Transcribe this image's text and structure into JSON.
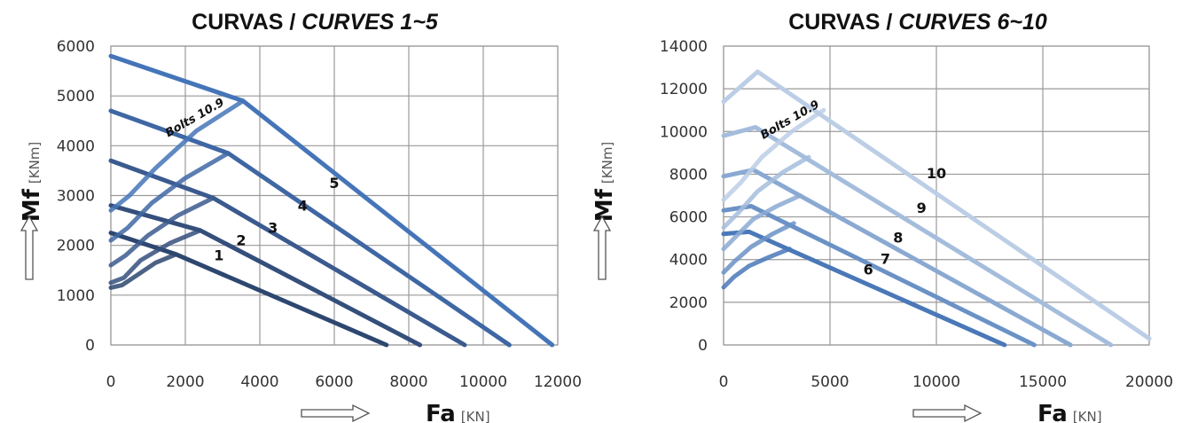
{
  "chart_data": [
    {
      "type": "line",
      "title_part1": "CURVAS / ",
      "title_part2": "CURVES 1~5",
      "xlabel": "Fa",
      "xunit": "[KN]",
      "ylabel": "Mf",
      "yunit": "[KNm]",
      "xlim": [
        0,
        12000
      ],
      "ylim": [
        0,
        6000
      ],
      "xticks": [
        "0",
        "2000",
        "4000",
        "6000",
        "8000",
        "10000",
        "12000"
      ],
      "yticks": [
        "0",
        "1000",
        "2000",
        "3000",
        "4000",
        "5000",
        "6000"
      ],
      "annotation": "Bolts 10.9",
      "series": [
        {
          "name": "1",
          "color": "#2d4770",
          "points": [
            [
              0,
              2250
            ],
            [
              1750,
              1820
            ],
            [
              7400,
              0
            ]
          ]
        },
        {
          "name": "2",
          "color": "#354f7c",
          "points": [
            [
              0,
              2800
            ],
            [
              2400,
              2300
            ],
            [
              8300,
              0
            ]
          ]
        },
        {
          "name": "3",
          "color": "#3b5a8e",
          "points": [
            [
              0,
              3700
            ],
            [
              2750,
              2950
            ],
            [
              9500,
              0
            ]
          ]
        },
        {
          "name": "4",
          "color": "#3f67a4",
          "points": [
            [
              0,
              4700
            ],
            [
              3150,
              3850
            ],
            [
              10700,
              0
            ]
          ]
        },
        {
          "name": "5",
          "color": "#4575b8",
          "points": [
            [
              0,
              5800
            ],
            [
              3550,
              4900
            ],
            [
              11850,
              0
            ]
          ]
        }
      ],
      "bolt_curves": [
        {
          "series": "1",
          "points": [
            [
              0,
              1150
            ],
            [
              300,
              1200
            ],
            [
              700,
              1400
            ],
            [
              1200,
              1650
            ],
            [
              1750,
              1820
            ]
          ]
        },
        {
          "series": "2",
          "points": [
            [
              0,
              1250
            ],
            [
              350,
              1350
            ],
            [
              800,
              1700
            ],
            [
              1600,
              2050
            ],
            [
              2400,
              2300
            ]
          ]
        },
        {
          "series": "3",
          "points": [
            [
              0,
              1600
            ],
            [
              400,
              1800
            ],
            [
              1000,
              2200
            ],
            [
              1800,
              2600
            ],
            [
              2750,
              2950
            ]
          ]
        },
        {
          "series": "4",
          "points": [
            [
              0,
              2100
            ],
            [
              450,
              2350
            ],
            [
              1100,
              2850
            ],
            [
              2000,
              3350
            ],
            [
              3150,
              3850
            ]
          ]
        },
        {
          "series": "5",
          "points": [
            [
              0,
              2700
            ],
            [
              500,
              3000
            ],
            [
              1200,
              3550
            ],
            [
              2300,
              4300
            ],
            [
              3550,
              4900
            ]
          ]
        }
      ],
      "curve_labels": [
        {
          "text": "1",
          "x": 2900,
          "y": 1700
        },
        {
          "text": "2",
          "x": 3500,
          "y": 2000
        },
        {
          "text": "3",
          "x": 4350,
          "y": 2250
        },
        {
          "text": "4",
          "x": 5150,
          "y": 2700
        },
        {
          "text": "5",
          "x": 6000,
          "y": 3150
        }
      ],
      "annotation_pos": {
        "x": 2300,
        "y": 4500
      }
    },
    {
      "type": "line",
      "title_part1": "CURVAS / ",
      "title_part2": "CURVES 6~10",
      "xlabel": "Fa",
      "xunit": "[KN]",
      "ylabel": "Mf",
      "yunit": "[KNm]",
      "xlim": [
        0,
        20000
      ],
      "ylim": [
        0,
        14000
      ],
      "xticks": [
        "0",
        "5000",
        "10000",
        "15000",
        "20000"
      ],
      "yticks": [
        "0",
        "2000",
        "4000",
        "6000",
        "8000",
        "10000",
        "12000",
        "14000"
      ],
      "annotation": "Bolts 10.9",
      "series": [
        {
          "name": "6",
          "color": "#4a78b8",
          "points": [
            [
              0,
              5200
            ],
            [
              1200,
              5300
            ],
            [
              13200,
              0
            ]
          ]
        },
        {
          "name": "7",
          "color": "#6b92c6",
          "points": [
            [
              0,
              6300
            ],
            [
              1300,
              6500
            ],
            [
              14600,
              0
            ]
          ]
        },
        {
          "name": "8",
          "color": "#8aa9d2",
          "points": [
            [
              0,
              7900
            ],
            [
              1400,
              8200
            ],
            [
              16300,
              0
            ]
          ]
        },
        {
          "name": "9",
          "color": "#a5bddc",
          "points": [
            [
              0,
              9800
            ],
            [
              1500,
              10200
            ],
            [
              18200,
              0
            ]
          ]
        },
        {
          "name": "10",
          "color": "#bccee6",
          "points": [
            [
              0,
              11400
            ],
            [
              1600,
              12800
            ],
            [
              20000,
              300
            ]
          ]
        }
      ],
      "bolt_curves": [
        {
          "series": "6",
          "points": [
            [
              0,
              2700
            ],
            [
              500,
              3200
            ],
            [
              1200,
              3700
            ],
            [
              2100,
              4100
            ],
            [
              3100,
              4500
            ]
          ]
        },
        {
          "series": "7",
          "points": [
            [
              0,
              3400
            ],
            [
              500,
              3900
            ],
            [
              1300,
              4600
            ],
            [
              2300,
              5200
            ],
            [
              3300,
              5700
            ]
          ]
        },
        {
          "series": "8",
          "points": [
            [
              0,
              4500
            ],
            [
              600,
              5100
            ],
            [
              1400,
              5900
            ],
            [
              2500,
              6500
            ],
            [
              3600,
              7000
            ]
          ]
        },
        {
          "series": "9",
          "points": [
            [
              0,
              5500
            ],
            [
              700,
              6200
            ],
            [
              1600,
              7200
            ],
            [
              2800,
              8100
            ],
            [
              4000,
              8800
            ]
          ]
        },
        {
          "series": "10",
          "points": [
            [
              0,
              6800
            ],
            [
              800,
              7600
            ],
            [
              1800,
              8800
            ],
            [
              3200,
              10000
            ],
            [
              4700,
              11000
            ]
          ]
        }
      ],
      "curve_labels": [
        {
          "text": "6",
          "x": 6800,
          "y": 3300
        },
        {
          "text": "7",
          "x": 7600,
          "y": 3800
        },
        {
          "text": "8",
          "x": 8200,
          "y": 4800
        },
        {
          "text": "9",
          "x": 9300,
          "y": 6200
        },
        {
          "text": "10",
          "x": 10000,
          "y": 7800
        }
      ],
      "annotation_pos": {
        "x": 3200,
        "y": 10400
      }
    }
  ]
}
